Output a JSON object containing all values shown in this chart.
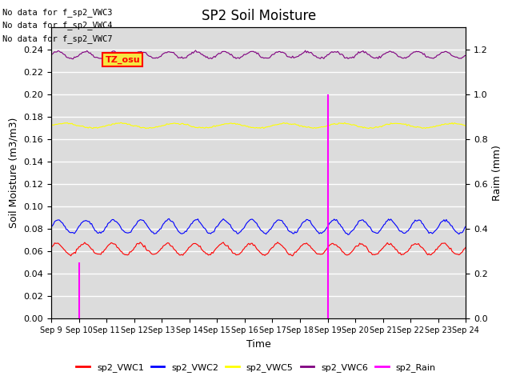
{
  "title": "SP2 Soil Moisture",
  "ylabel_left": "Soil Moisture (m3/m3)",
  "ylabel_right": "Raim (mm)",
  "xlabel": "Time",
  "no_data_lines": [
    "No data for f_sp2_VWC3",
    "No data for f_sp2_VWC4",
    "No data for f_sp2_VWC7"
  ],
  "tz_label": "TZ_osu",
  "x_ticks_labels": [
    "Sep 9",
    "Sep 10",
    "Sep 11",
    "Sep 12",
    "Sep 13",
    "Sep 14",
    "Sep 15",
    "Sep 16",
    "Sep 17",
    "Sep 18",
    "Sep 19",
    "Sep 20",
    "Sep 21",
    "Sep 22",
    "Sep 23",
    "Sep 24"
  ],
  "ylim_left": [
    0.0,
    0.26
  ],
  "ylim_right": [
    0.0,
    1.3
  ],
  "yticks_left": [
    0.0,
    0.02,
    0.04,
    0.06,
    0.08,
    0.1,
    0.12,
    0.14,
    0.16,
    0.18,
    0.2,
    0.22,
    0.24
  ],
  "yticks_right": [
    0.0,
    0.2,
    0.4,
    0.6,
    0.8,
    1.0,
    1.2
  ],
  "bg_color": "#dcdcdc",
  "grid_color": "white",
  "vwc1_color": "red",
  "vwc2_color": "blue",
  "vwc5_color": "yellow",
  "vwc6_color": "purple",
  "rain_color": "magenta",
  "rain_times": [
    1.0,
    10.0
  ],
  "rain_vals_mm": [
    0.25,
    1.0
  ],
  "vwc6_base": 0.235,
  "vwc6_amp": 0.003,
  "vwc5_base": 0.172,
  "vwc5_amp": 0.002,
  "vwc2_base": 0.082,
  "vwc2_amp": 0.006,
  "vwc1_base": 0.062,
  "vwc1_amp": 0.005
}
